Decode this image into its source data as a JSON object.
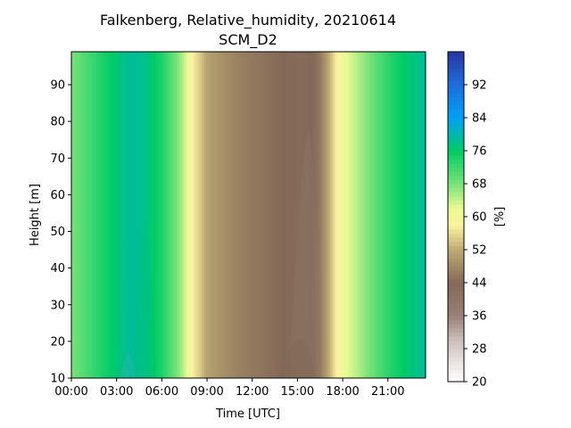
{
  "chart_data": {
    "type": "heatmap",
    "title": "Falkenberg, Relative_humidity, 20210614",
    "subtitle": "SCM_D2",
    "xlabel": "Time [UTC]",
    "ylabel": "Height [m]",
    "x_unit": "hours UTC",
    "x_range": [
      0,
      23.5
    ],
    "y_range": [
      10,
      99
    ],
    "x_ticks": [
      {
        "value": 0,
        "label": "00:00"
      },
      {
        "value": 3,
        "label": "03:00"
      },
      {
        "value": 6,
        "label": "06:00"
      },
      {
        "value": 9,
        "label": "09:00"
      },
      {
        "value": 12,
        "label": "12:00"
      },
      {
        "value": 15,
        "label": "15:00"
      },
      {
        "value": 18,
        "label": "18:00"
      },
      {
        "value": 21,
        "label": "21:00"
      }
    ],
    "y_ticks": [
      {
        "value": 10,
        "label": "10"
      },
      {
        "value": 20,
        "label": "20"
      },
      {
        "value": 30,
        "label": "30"
      },
      {
        "value": 40,
        "label": "40"
      },
      {
        "value": 50,
        "label": "50"
      },
      {
        "value": 60,
        "label": "60"
      },
      {
        "value": 70,
        "label": "70"
      },
      {
        "value": 80,
        "label": "80"
      },
      {
        "value": 90,
        "label": "90"
      }
    ],
    "colorbar": {
      "label": "[%]",
      "range": [
        20,
        100
      ],
      "colormap": "terrain (reversed)",
      "ticks": [
        {
          "value": 20,
          "label": "20"
        },
        {
          "value": 28,
          "label": "28"
        },
        {
          "value": 36,
          "label": "36"
        },
        {
          "value": 44,
          "label": "44"
        },
        {
          "value": 52,
          "label": "52"
        },
        {
          "value": 60,
          "label": "60"
        },
        {
          "value": 68,
          "label": "68"
        },
        {
          "value": 76,
          "label": "76"
        },
        {
          "value": 84,
          "label": "84"
        },
        {
          "value": 92,
          "label": "92"
        }
      ]
    },
    "humidity_vs_time": {
      "time": [
        0,
        1,
        2,
        3,
        4,
        5,
        6,
        7,
        7.5,
        8,
        8.5,
        9,
        10,
        11,
        12,
        13,
        14,
        15,
        16,
        16.5,
        17,
        17.5,
        18,
        19,
        20,
        21,
        22,
        23.5
      ],
      "rh": [
        68,
        71,
        74,
        77,
        79,
        78,
        74,
        68,
        64,
        58,
        55,
        51,
        49,
        47,
        46,
        45,
        44,
        43.5,
        44,
        46,
        51,
        57,
        61,
        65,
        69,
        73,
        76,
        79
      ]
    }
  }
}
